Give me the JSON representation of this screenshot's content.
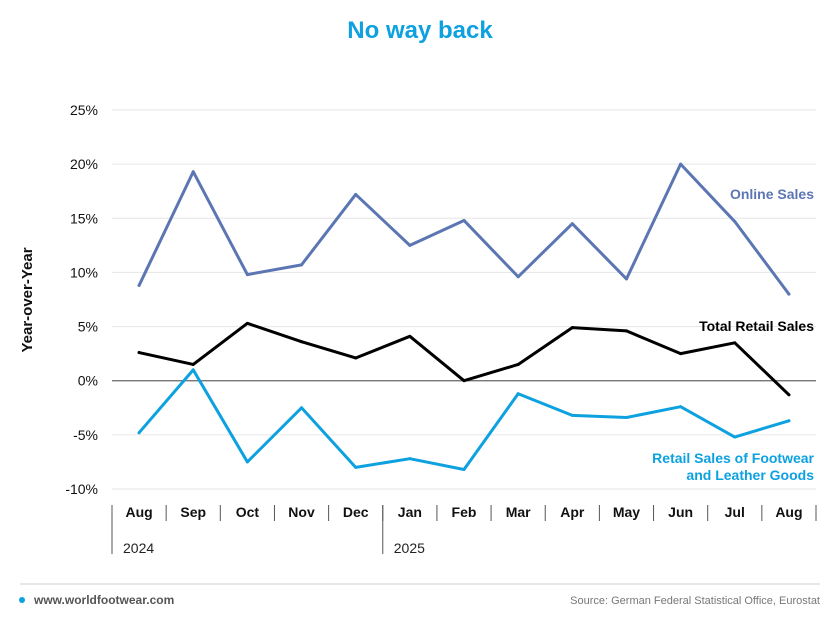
{
  "colors": {
    "accent": "#0da1e0",
    "online": "#5b76b3",
    "total": "#000000",
    "footwear": "#0da1e0",
    "grid": "#e6e6e6",
    "zero_line": "#666666",
    "footer_rule": "#d0d0d0"
  },
  "chart_data": {
    "type": "line",
    "title": "No way back",
    "ylabel": "Year-over-Year",
    "xlabel": "",
    "ylim": [
      -10,
      25
    ],
    "yticks": [
      25,
      20,
      15,
      10,
      5,
      0,
      -5,
      -10
    ],
    "ytick_labels": [
      "25%",
      "20%",
      "15%",
      "10%",
      "5%",
      "0%",
      "-5%",
      "-10%"
    ],
    "categories": [
      "Aug",
      "Sep",
      "Oct",
      "Nov",
      "Dec",
      "Jan",
      "Feb",
      "Mar",
      "Apr",
      "May",
      "Jun",
      "Jul",
      "Aug"
    ],
    "years": [
      {
        "label": "2024",
        "start_index": 0
      },
      {
        "label": "2025",
        "start_index": 5
      }
    ],
    "series": [
      {
        "name": "Online Sales",
        "label_lines": [
          "Online Sales"
        ],
        "color_key": "online",
        "values": [
          8.8,
          19.3,
          9.8,
          10.7,
          17.2,
          12.5,
          14.8,
          9.6,
          14.5,
          9.4,
          20.0,
          14.7,
          8.0
        ]
      },
      {
        "name": "Total Retail Sales",
        "label_lines": [
          "Total Retail Sales"
        ],
        "color_key": "total",
        "values": [
          2.6,
          1.5,
          5.3,
          3.6,
          2.1,
          4.1,
          0.0,
          1.5,
          4.9,
          4.6,
          2.5,
          3.5,
          -1.3
        ]
      },
      {
        "name": "Retail Sales of Footwear and Leather Goods",
        "label_lines": [
          "Retail Sales of Footwear",
          "and Leather Goods"
        ],
        "color_key": "footwear",
        "values": [
          -4.8,
          1.0,
          -7.5,
          -2.5,
          -8.0,
          -7.2,
          -8.2,
          -1.2,
          -3.2,
          -3.4,
          -2.4,
          -5.2,
          -3.7
        ]
      }
    ]
  },
  "footer": {
    "website": "www.worldfootwear.com",
    "source": "Source: German Federal Statistical Office, Eurostat"
  }
}
